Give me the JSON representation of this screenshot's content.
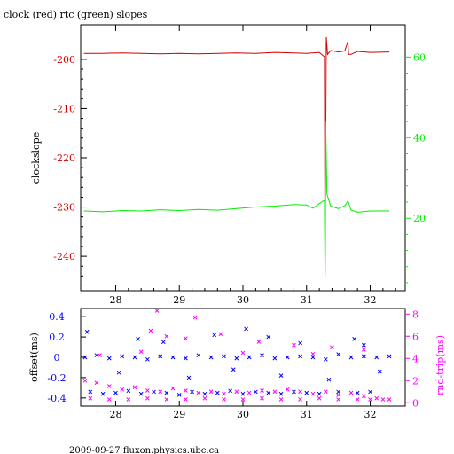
{
  "title": "clock (red) rtc (green) slopes",
  "footer": "2009-09-27 fluxon.physics.ubc.ca",
  "chart_data": [
    {
      "type": "line",
      "name": "top-panel",
      "ylabel": "clockslope",
      "xlim": [
        27.45,
        32.55
      ],
      "ylim_left": [
        -247,
        -193
      ],
      "ylim_right": [
        2,
        68
      ],
      "x_ticks": [
        28,
        29,
        30,
        31,
        32
      ],
      "y_ticks_left": [
        -200,
        -210,
        -220,
        -230,
        -240
      ],
      "y_ticks_right": [
        60,
        40,
        20
      ],
      "colors": {
        "clock": "#d00000",
        "rtc": "#00ee00",
        "axes": "#000000"
      },
      "series": [
        {
          "name": "clock",
          "axis": "left",
          "color": "#d00000",
          "points": [
            [
              27.5,
              -198.8
            ],
            [
              27.8,
              -198.8
            ],
            [
              28.1,
              -198.7
            ],
            [
              28.4,
              -198.8
            ],
            [
              28.7,
              -198.9
            ],
            [
              29.0,
              -198.8
            ],
            [
              29.3,
              -198.9
            ],
            [
              29.6,
              -198.8
            ],
            [
              29.9,
              -198.7
            ],
            [
              30.2,
              -198.8
            ],
            [
              30.5,
              -198.6
            ],
            [
              30.8,
              -198.7
            ],
            [
              31.0,
              -198.8
            ],
            [
              31.2,
              -198.6
            ],
            [
              31.28,
              -199.5
            ],
            [
              31.29,
              -243.5
            ],
            [
              31.31,
              -195.5
            ],
            [
              31.33,
              -199.0
            ],
            [
              31.38,
              -198.2
            ],
            [
              31.5,
              -198.5
            ],
            [
              31.6,
              -198.3
            ],
            [
              31.65,
              -196.4
            ],
            [
              31.66,
              -199.0
            ],
            [
              31.7,
              -199.0
            ],
            [
              31.8,
              -198.4
            ],
            [
              32.0,
              -198.6
            ],
            [
              32.3,
              -198.5
            ]
          ]
        },
        {
          "name": "rtc",
          "axis": "right",
          "color": "#00ee00",
          "points": [
            [
              27.5,
              21.8
            ],
            [
              27.8,
              21.6
            ],
            [
              28.1,
              21.9
            ],
            [
              28.4,
              21.8
            ],
            [
              28.7,
              22.1
            ],
            [
              29.0,
              21.9
            ],
            [
              29.3,
              22.2
            ],
            [
              29.6,
              22.0
            ],
            [
              29.9,
              22.4
            ],
            [
              30.2,
              22.8
            ],
            [
              30.5,
              23.0
            ],
            [
              30.8,
              23.4
            ],
            [
              31.0,
              23.3
            ],
            [
              31.1,
              22.5
            ],
            [
              31.2,
              23.6
            ],
            [
              31.28,
              24.5
            ],
            [
              31.29,
              5.0
            ],
            [
              31.3,
              44.0
            ],
            [
              31.32,
              26.0
            ],
            [
              31.38,
              23.0
            ],
            [
              31.5,
              22.4
            ],
            [
              31.6,
              23.1
            ],
            [
              31.65,
              24.3
            ],
            [
              31.7,
              22.0
            ],
            [
              31.8,
              21.5
            ],
            [
              32.0,
              21.8
            ],
            [
              32.3,
              21.8
            ]
          ]
        }
      ]
    },
    {
      "type": "scatter",
      "name": "bottom-panel",
      "ylabel_left": "offset(ms)",
      "ylabel_right": "rnd-trip(ms)",
      "xlim": [
        27.45,
        32.55
      ],
      "ylim_left": [
        -0.48,
        0.48
      ],
      "ylim_right": [
        -0.3,
        8.5
      ],
      "x_ticks": [
        28,
        29,
        30,
        31,
        32
      ],
      "y_ticks_left": [
        "0.4",
        "0.2",
        "0",
        "-0.2",
        "-0.4"
      ],
      "y_ticks_right": [
        "8",
        "6",
        "4",
        "2",
        "0"
      ],
      "colors": {
        "offset": "#0000ff",
        "roundtrip": "#ff00ff"
      },
      "series": [
        {
          "name": "offset",
          "color": "#0000ff",
          "points": [
            [
              27.52,
              0.0
            ],
            [
              27.7,
              0.02
            ],
            [
              27.9,
              -0.01
            ],
            [
              28.1,
              0.01
            ],
            [
              28.3,
              0.0
            ],
            [
              28.5,
              -0.02
            ],
            [
              28.7,
              0.01
            ],
            [
              28.9,
              0.0
            ],
            [
              29.1,
              -0.01
            ],
            [
              29.3,
              0.02
            ],
            [
              29.5,
              0.0
            ],
            [
              29.7,
              0.01
            ],
            [
              29.9,
              -0.01
            ],
            [
              30.1,
              0.0
            ],
            [
              30.3,
              0.02
            ],
            [
              30.5,
              -0.01
            ],
            [
              30.7,
              0.0
            ],
            [
              30.9,
              0.01
            ],
            [
              31.1,
              0.0
            ],
            [
              31.3,
              -0.02
            ],
            [
              31.5,
              0.03
            ],
            [
              31.7,
              0.0
            ],
            [
              31.9,
              0.01
            ],
            [
              32.1,
              0.0
            ],
            [
              32.3,
              0.01
            ],
            [
              27.6,
              -0.34
            ],
            [
              27.8,
              -0.36
            ],
            [
              28.0,
              -0.35
            ],
            [
              28.2,
              -0.33
            ],
            [
              28.4,
              -0.36
            ],
            [
              28.6,
              -0.34
            ],
            [
              28.8,
              -0.35
            ],
            [
              29.0,
              -0.37
            ],
            [
              29.2,
              -0.34
            ],
            [
              29.4,
              -0.36
            ],
            [
              29.6,
              -0.35
            ],
            [
              29.8,
              -0.33
            ],
            [
              30.0,
              -0.36
            ],
            [
              30.2,
              -0.34
            ],
            [
              30.4,
              -0.35
            ],
            [
              30.6,
              -0.36
            ],
            [
              30.8,
              -0.34
            ],
            [
              31.0,
              -0.35
            ],
            [
              31.2,
              -0.36
            ],
            [
              31.5,
              -0.34
            ],
            [
              31.8,
              -0.35
            ],
            [
              32.0,
              -0.34
            ],
            [
              27.55,
              0.25
            ],
            [
              28.35,
              0.18
            ],
            [
              28.75,
              0.15
            ],
            [
              29.55,
              0.22
            ],
            [
              30.05,
              0.28
            ],
            [
              30.4,
              0.2
            ],
            [
              30.9,
              0.14
            ],
            [
              31.75,
              0.18
            ],
            [
              31.9,
              0.12
            ],
            [
              28.05,
              -0.15
            ],
            [
              29.15,
              -0.2
            ],
            [
              29.85,
              -0.12
            ],
            [
              30.6,
              -0.18
            ],
            [
              31.35,
              -0.22
            ],
            [
              32.15,
              -0.14
            ]
          ]
        },
        {
          "name": "rnd-trip",
          "color": "#ff00ff",
          "points": [
            [
              27.52,
              2.0
            ],
            [
              27.7,
              1.8
            ],
            [
              27.9,
              1.5
            ],
            [
              28.1,
              1.2
            ],
            [
              28.3,
              1.4
            ],
            [
              28.5,
              1.1
            ],
            [
              28.7,
              1.0
            ],
            [
              28.9,
              1.3
            ],
            [
              29.1,
              1.1
            ],
            [
              29.3,
              0.9
            ],
            [
              29.5,
              1.0
            ],
            [
              29.7,
              0.8
            ],
            [
              29.9,
              1.0
            ],
            [
              30.1,
              0.9
            ],
            [
              30.3,
              1.1
            ],
            [
              30.5,
              1.0
            ],
            [
              30.7,
              1.2
            ],
            [
              30.9,
              1.0
            ],
            [
              31.1,
              0.8
            ],
            [
              31.3,
              1.0
            ],
            [
              31.5,
              0.7
            ],
            [
              31.7,
              0.9
            ],
            [
              31.9,
              0.6
            ],
            [
              32.1,
              0.4
            ],
            [
              32.3,
              0.3
            ],
            [
              27.6,
              0.4
            ],
            [
              27.9,
              0.3
            ],
            [
              28.2,
              0.3
            ],
            [
              28.5,
              0.4
            ],
            [
              28.8,
              0.3
            ],
            [
              29.1,
              0.3
            ],
            [
              29.4,
              0.4
            ],
            [
              29.7,
              0.3
            ],
            [
              30.0,
              0.3
            ],
            [
              30.3,
              0.4
            ],
            [
              30.6,
              0.3
            ],
            [
              30.9,
              0.3
            ],
            [
              31.2,
              0.4
            ],
            [
              31.5,
              0.3
            ],
            [
              31.8,
              0.3
            ],
            [
              32.0,
              0.3
            ],
            [
              32.2,
              0.3
            ],
            [
              28.65,
              8.3
            ],
            [
              28.55,
              6.5
            ],
            [
              29.25,
              7.7
            ],
            [
              28.8,
              6.0
            ],
            [
              29.1,
              5.8
            ],
            [
              29.65,
              6.2
            ],
            [
              30.25,
              5.5
            ],
            [
              30.8,
              5.2
            ],
            [
              31.4,
              5.0
            ],
            [
              31.9,
              4.8
            ],
            [
              27.75,
              4.3
            ],
            [
              28.4,
              4.6
            ],
            [
              30.0,
              4.5
            ],
            [
              31.1,
              4.4
            ]
          ]
        }
      ]
    }
  ]
}
